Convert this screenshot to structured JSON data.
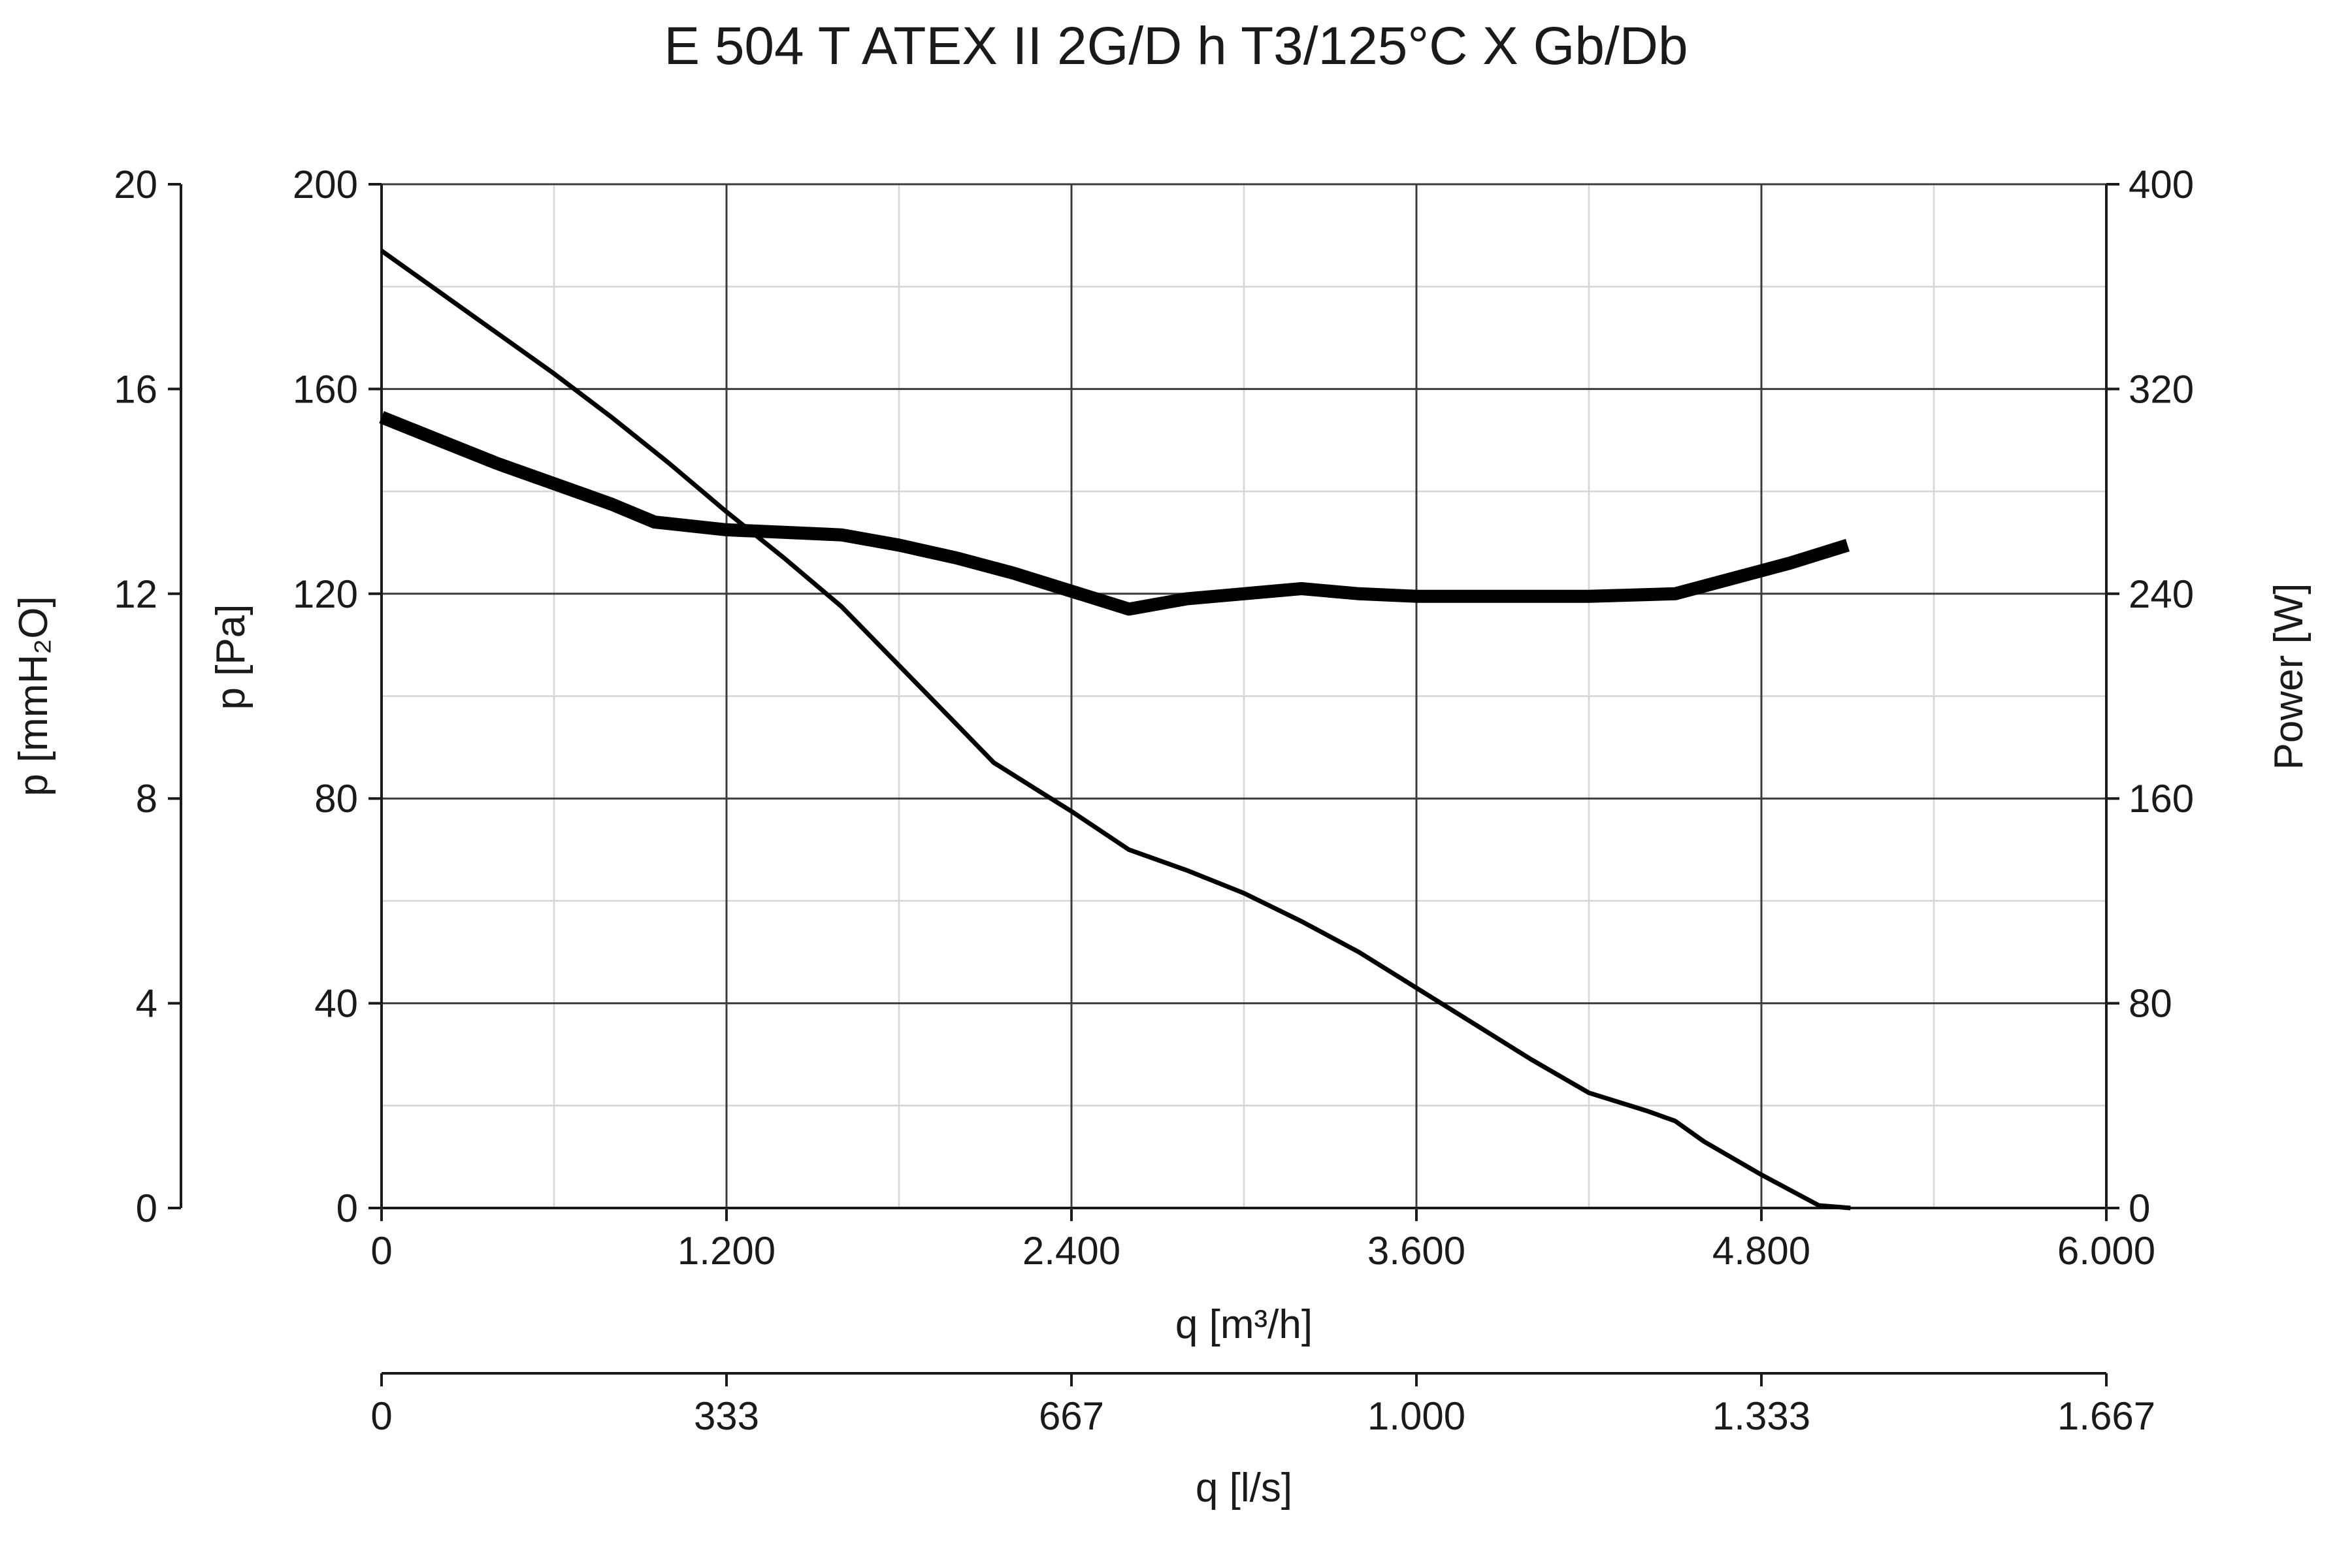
{
  "chart_data": {
    "type": "line",
    "title": "E 504 T ATEX II 2G/D h T3/125°C X Gb/Db",
    "grid": true,
    "legend": "none",
    "axes": {
      "x_primary": {
        "label": "q [m³/h]",
        "range": [
          0,
          6000
        ],
        "ticks": [
          0,
          1200,
          2400,
          3600,
          4800,
          6000
        ],
        "tick_labels": [
          "0",
          "1.200",
          "2.400",
          "3.600",
          "4.800",
          "6.000"
        ]
      },
      "x_secondary": {
        "label": "q [l/s]",
        "range": [
          0,
          1666.7
        ],
        "tick_labels": [
          "0",
          "333",
          "667",
          "1.000",
          "1.333",
          "1.667"
        ]
      },
      "y_left_outer": {
        "label": "p [mmH₂O]",
        "range": [
          0,
          20
        ],
        "tick_labels": [
          "0",
          "4",
          "8",
          "12",
          "16",
          "20"
        ]
      },
      "y_left": {
        "label": "p [Pa]",
        "range": [
          0,
          200
        ],
        "ticks": [
          0,
          40,
          80,
          120,
          160,
          200
        ],
        "tick_labels": [
          "0",
          "40",
          "80",
          "120",
          "160",
          "200"
        ]
      },
      "y_right": {
        "label": "Power [W]",
        "range": [
          0,
          400
        ],
        "tick_labels": [
          "0",
          "80",
          "160",
          "240",
          "320",
          "400"
        ]
      }
    },
    "series": [
      {
        "axis": "y_left",
        "x": [
          0,
          200,
          400,
          600,
          800,
          1000,
          1200,
          1400,
          1600,
          1800,
          2000,
          2130,
          2300,
          2400,
          2600,
          2800,
          3000,
          3200,
          3400,
          3600,
          3800,
          4000,
          4200,
          4400,
          4500,
          4600,
          4800,
          5000,
          5110
        ],
        "y": [
          187,
          179,
          171,
          163,
          154.5,
          145.5,
          136,
          127,
          117.5,
          106,
          94.5,
          87,
          81,
          77.5,
          70,
          66,
          61.5,
          56,
          50,
          43,
          36,
          29,
          22.5,
          19,
          17,
          13,
          6.5,
          0.5,
          0
        ]
      },
      {
        "axis": "y_right",
        "x": [
          0,
          200,
          400,
          600,
          800,
          950,
          1200,
          1400,
          1600,
          1800,
          2000,
          2200,
          2400,
          2600,
          2800,
          3000,
          3200,
          3400,
          3600,
          3800,
          4000,
          4200,
          4500,
          4700,
          4900,
          5100
        ],
        "y": [
          309,
          300,
          291,
          283,
          275,
          268,
          265,
          264,
          263,
          259,
          254,
          248,
          241,
          234,
          238,
          240,
          242,
          240,
          239,
          239,
          239,
          239,
          240,
          246,
          252,
          259
        ]
      }
    ]
  }
}
